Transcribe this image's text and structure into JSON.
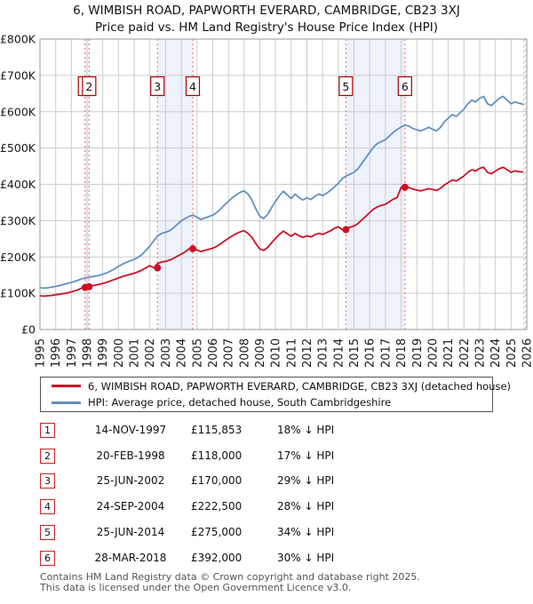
{
  "title": {
    "line1": "6, WIMBISH ROAD, PAPWORTH EVERARD, CAMBRIDGE, CB23 3XJ",
    "line2": "Price paid vs. HM Land Registry's House Price Index (HPI)"
  },
  "chart_data": {
    "type": "line",
    "x_range": [
      1995,
      2026
    ],
    "y_max_k": 800,
    "y_tick_labels": [
      "£0",
      "£100K",
      "£200K",
      "£300K",
      "£400K",
      "£500K",
      "£600K",
      "£700K",
      "£800K"
    ],
    "x_tick_labels": [
      "1995",
      "1996",
      "1997",
      "1998",
      "1999",
      "2000",
      "2001",
      "2002",
      "2003",
      "2004",
      "2005",
      "2006",
      "2007",
      "2008",
      "2009",
      "2010",
      "2011",
      "2012",
      "2013",
      "2014",
      "2015",
      "2016",
      "2017",
      "2018",
      "2019",
      "2020",
      "2021",
      "2022",
      "2023",
      "2024",
      "2025",
      "2026"
    ],
    "grid_color": "#cccccc",
    "border_color": "#999999",
    "band_color": "#edf2fb",
    "sale_line_color": "#ff6666",
    "box_border_color": "#aa0000",
    "series": [
      {
        "name": "HPI: Average price, detached house, South Cambridgeshire",
        "color": "#6191c2",
        "x_start": 1995,
        "x_step": 0.25,
        "values_gbp_k": [
          115,
          114,
          115,
          117,
          119,
          121,
          124,
          127,
          130,
          133,
          137,
          141,
          143,
          145,
          147,
          149,
          152,
          156,
          161,
          167,
          174,
          180,
          185,
          189,
          193,
          199,
          207,
          218,
          230,
          245,
          258,
          265,
          268,
          272,
          280,
          290,
          299,
          306,
          312,
          315,
          309,
          303,
          307,
          311,
          315,
          322,
          332,
          343,
          353,
          363,
          371,
          378,
          382,
          373,
          357,
          332,
          312,
          306,
          317,
          336,
          353,
          369,
          381,
          371,
          361,
          373,
          363,
          357,
          363,
          358,
          367,
          373,
          369,
          375,
          383,
          393,
          403,
          416,
          423,
          428,
          433,
          443,
          458,
          473,
          488,
          503,
          513,
          518,
          523,
          533,
          543,
          551,
          558,
          563,
          560,
          554,
          550,
          547,
          552,
          557,
          552,
          547,
          557,
          572,
          582,
          592,
          587,
          597,
          607,
          622,
          632,
          627,
          637,
          642,
          622,
          617,
          627,
          637,
          642,
          632,
          622,
          627,
          623,
          621
        ]
      },
      {
        "name": "6, WIMBISH ROAD, PAPWORTH EVERARD, CAMBRIDGE, CB23 3XJ (detached house)",
        "color": "#cc1124",
        "x_start": 1995,
        "x_step": 0.25,
        "values_gbp_k": [
          93,
          92,
          93,
          94,
          96,
          97,
          99,
          101,
          104,
          107,
          111,
          116,
          118,
          120,
          122,
          124,
          127,
          130,
          134,
          138,
          142,
          146,
          149,
          152,
          155,
          159,
          164,
          170,
          176,
          170,
          182,
          186,
          188,
          191,
          196,
          202,
          208,
          214,
          222.5,
          223,
          219,
          215,
          218,
          221,
          224,
          229,
          236,
          244,
          251,
          258,
          264,
          269,
          272,
          265,
          254,
          236,
          222,
          218,
          226,
          239,
          251,
          262,
          271,
          264,
          257,
          265,
          258,
          254,
          258,
          255,
          261,
          265,
          262,
          267,
          272,
          279,
          283,
          275,
          279,
          282,
          285,
          292,
          302,
          312,
          322,
          332,
          338,
          342,
          345,
          352,
          359,
          364,
          392,
          394,
          391,
          387,
          384,
          382,
          385,
          388,
          386,
          383,
          389,
          398,
          405,
          412,
          409,
          416,
          423,
          433,
          440,
          437,
          444,
          447,
          433,
          429,
          436,
          443,
          447,
          440,
          433,
          437,
          435,
          434
        ]
      }
    ],
    "sales": [
      {
        "num": "1",
        "x": 1997.87,
        "price_k": 115.853,
        "date": "14-NOV-1997",
        "price": "£115,853",
        "pct": "18% ↓ HPI"
      },
      {
        "num": "2",
        "x": 1998.13,
        "price_k": 118,
        "date": "20-FEB-1998",
        "price": "£118,000",
        "pct": "17% ↓ HPI"
      },
      {
        "num": "3",
        "x": 2002.48,
        "price_k": 170,
        "date": "25-JUN-2002",
        "price": "£170,000",
        "pct": "29% ↓ HPI"
      },
      {
        "num": "4",
        "x": 2004.73,
        "price_k": 222.5,
        "date": "24-SEP-2004",
        "price": "£222,500",
        "pct": "28% ↓ HPI"
      },
      {
        "num": "5",
        "x": 2014.48,
        "price_k": 275,
        "date": "25-JUN-2014",
        "price": "£275,000",
        "pct": "34% ↓ HPI"
      },
      {
        "num": "6",
        "x": 2018.24,
        "price_k": 392,
        "date": "28-MAR-2018",
        "price": "£392,000",
        "pct": "30% ↓ HPI"
      }
    ],
    "shaded_periods": [
      [
        1997.87,
        1998.13
      ],
      [
        2002.48,
        2004.73
      ],
      [
        2014.48,
        2018.24
      ]
    ],
    "future_hatch_from": 2025.75
  },
  "legend": {
    "items": [
      {
        "label": "6, WIMBISH ROAD, PAPWORTH EVERARD, CAMBRIDGE, CB23 3XJ (detached house)",
        "color": "#cc1124"
      },
      {
        "label": "HPI: Average price, detached house, South Cambridgeshire",
        "color": "#6191c2"
      }
    ]
  },
  "footer": {
    "line1": "Contains HM Land Registry data © Crown copyright and database right 2025.",
    "line2": "This data is licensed under the Open Government Licence v3.0."
  }
}
